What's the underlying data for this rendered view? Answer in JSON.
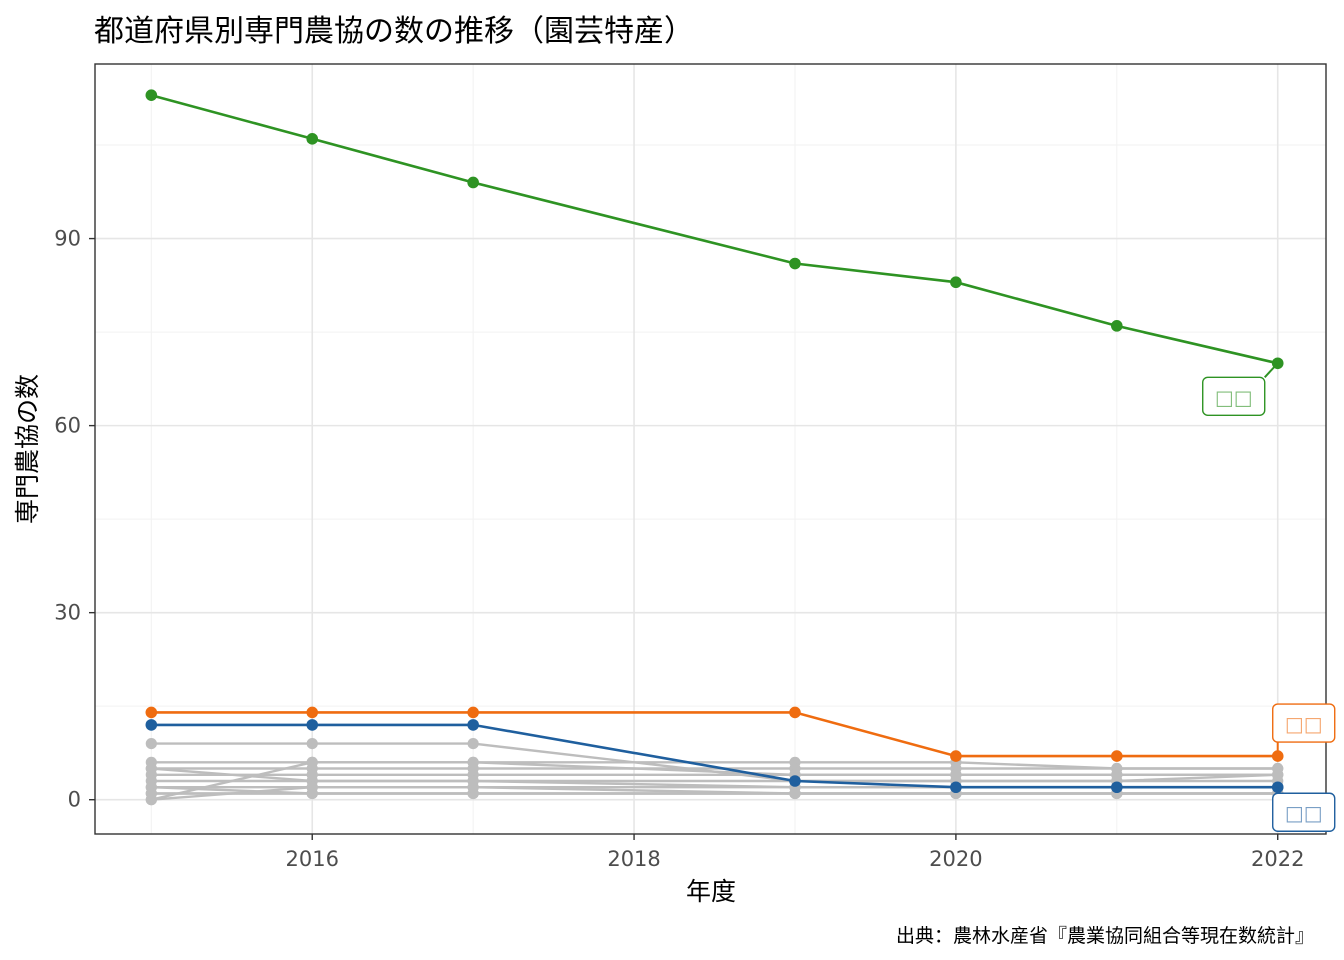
{
  "chart_data": {
    "type": "line",
    "title": "都道府県別専門農協の数の推移（園芸特産）",
    "xlabel": "年度",
    "ylabel": "専門農協の数",
    "caption": "出典：農林水産省『農業協同組合等現在数統計』",
    "x": [
      2015,
      2016,
      2017,
      2019,
      2020,
      2021,
      2022
    ],
    "x_ticks": [
      2016,
      2018,
      2020,
      2022
    ],
    "y_ticks": [
      0,
      30,
      60,
      90
    ],
    "xlim": [
      2014.65,
      2022.3
    ],
    "ylim": [
      -5.5,
      118
    ],
    "grid": true,
    "legend": "none",
    "highlight_series": [
      {
        "color": "#2e9323",
        "end_label": "□□",
        "values": [
          113,
          106,
          99,
          86,
          83,
          76,
          70
        ]
      },
      {
        "color": "#ef6c10",
        "end_label": "□□",
        "values": [
          14,
          14,
          14,
          14,
          7,
          7,
          7
        ]
      },
      {
        "color": "#1f5f9e",
        "end_label": "□□",
        "values": [
          12,
          12,
          12,
          3,
          2,
          2,
          2
        ]
      }
    ],
    "background_series_color": "#bdbdbd",
    "background_series": [
      [
        9,
        9,
        9,
        3,
        3,
        3,
        3
      ],
      [
        6,
        6,
        6,
        6,
        6,
        5,
        5
      ],
      [
        5,
        5,
        5,
        5,
        5,
        5,
        5
      ],
      [
        5,
        3,
        3,
        2,
        2,
        2,
        2
      ],
      [
        4,
        4,
        4,
        4,
        4,
        4,
        4
      ],
      [
        3,
        3,
        3,
        3,
        3,
        3,
        4
      ],
      [
        2,
        2,
        2,
        2,
        2,
        2,
        2
      ],
      [
        2,
        1,
        1,
        1,
        1,
        1,
        1
      ],
      [
        1,
        1,
        1,
        1,
        1,
        1,
        1
      ],
      [
        1,
        1,
        1,
        1,
        1,
        1,
        1
      ],
      [
        0,
        6,
        6,
        4,
        4,
        4,
        4
      ],
      [
        0,
        2,
        2,
        1,
        1,
        1,
        1
      ]
    ]
  }
}
